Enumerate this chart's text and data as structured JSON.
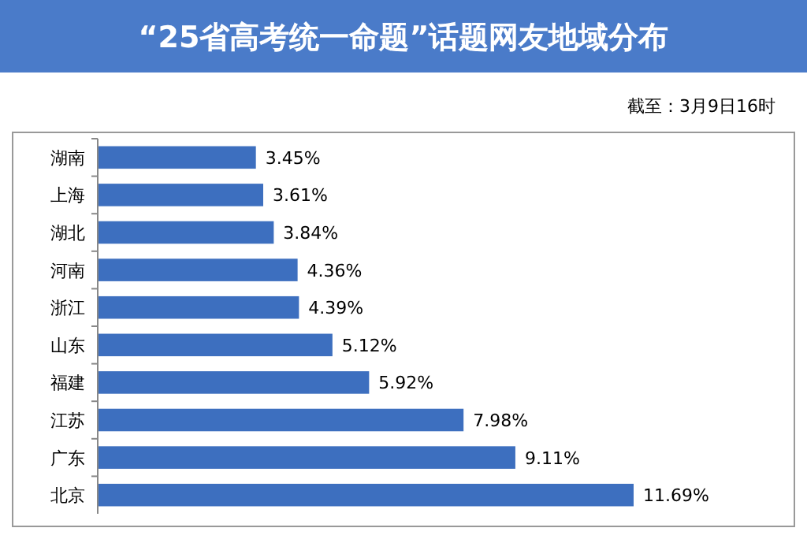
{
  "chart_data": {
    "type": "bar",
    "orientation": "horizontal",
    "title": "“25省高考统一命题”话题网友地域分布",
    "subtitle": "截至：3月9日16时",
    "categories": [
      "湖南",
      "上海",
      "湖北",
      "河南",
      "浙江",
      "山东",
      "福建",
      "江苏",
      "广东",
      "北京"
    ],
    "values": [
      3.45,
      3.61,
      3.84,
      4.36,
      4.39,
      5.12,
      5.92,
      7.98,
      9.11,
      11.69
    ],
    "value_labels": [
      "3.45%",
      "3.61%",
      "3.84%",
      "4.36%",
      "4.39%",
      "5.12%",
      "5.92%",
      "7.98%",
      "9.11%",
      "11.69%"
    ],
    "color": "#3d6fbf"
  }
}
